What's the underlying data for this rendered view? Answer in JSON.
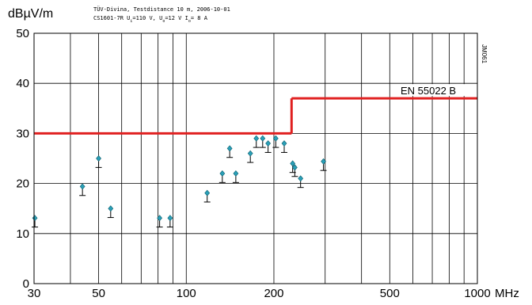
{
  "header": {
    "title_line1": "TÜV-Divina, Testdistance 10 m, 2006-10-01",
    "title_line2_parts": [
      "CS1601-7R U",
      "i",
      "=110 V, U",
      "o",
      "=12 V I",
      "o",
      "= 8 A"
    ]
  },
  "chart_data": {
    "type": "scatter",
    "ylabel": "dBµV/m",
    "xunit": "MHz",
    "xscale": "log",
    "xlim": [
      30,
      1000
    ],
    "ylim": [
      0,
      50
    ],
    "grid": true,
    "x_tick_labels": [
      "30",
      "50",
      "100",
      "200",
      "500",
      "1000"
    ],
    "x_ticks": [
      30,
      50,
      100,
      200,
      500,
      1000
    ],
    "x_grid": [
      30,
      40,
      50,
      60,
      70,
      80,
      90,
      100,
      200,
      300,
      400,
      500,
      600,
      700,
      800,
      900,
      1000
    ],
    "y_ticks": [
      0,
      10,
      20,
      30,
      40,
      50
    ],
    "y_tick_labels": [
      "0",
      "10",
      "20",
      "30",
      "40",
      "50"
    ],
    "limit_line": {
      "name": "EN 55022 B",
      "color": "#e02020",
      "segments": [
        {
          "x": [
            30,
            230
          ],
          "y": 30
        },
        {
          "x": [
            230,
            1000
          ],
          "y": 37
        }
      ]
    },
    "series": [
      {
        "marker": "diamond",
        "color": "#2aa0b8",
        "points": [
          {
            "x": 30.2,
            "y": 13.1,
            "lo": 11.3
          },
          {
            "x": 44.0,
            "y": 19.4,
            "lo": 17.6
          },
          {
            "x": 50.0,
            "y": 25.0,
            "lo": 23.2
          },
          {
            "x": 55.0,
            "y": 15.0,
            "lo": 13.2
          },
          {
            "x": 81.0,
            "y": 13.1,
            "lo": 11.3
          },
          {
            "x": 88.0,
            "y": 13.1,
            "lo": 11.3
          },
          {
            "x": 118.0,
            "y": 18.1,
            "lo": 16.3
          },
          {
            "x": 133.0,
            "y": 22.0,
            "lo": 20.2
          },
          {
            "x": 141.0,
            "y": 27.0,
            "lo": 25.2
          },
          {
            "x": 148.0,
            "y": 22.0,
            "lo": 20.2
          },
          {
            "x": 166.0,
            "y": 26.0,
            "lo": 24.2
          },
          {
            "x": 174.0,
            "y": 29.0,
            "lo": 27.2
          },
          {
            "x": 183.0,
            "y": 29.0,
            "lo": 27.2
          },
          {
            "x": 191.0,
            "y": 28.0,
            "lo": 26.2
          },
          {
            "x": 203.0,
            "y": 29.0,
            "lo": 27.2
          },
          {
            "x": 217.0,
            "y": 28.0,
            "lo": 26.2
          },
          {
            "x": 232.0,
            "y": 24.0,
            "lo": 22.2
          },
          {
            "x": 236.0,
            "y": 23.2,
            "lo": 21.4
          },
          {
            "x": 247.0,
            "y": 21.0,
            "lo": 19.2
          },
          {
            "x": 296.0,
            "y": 24.4,
            "lo": 22.6
          }
        ]
      }
    ],
    "side_label": "JM061"
  }
}
